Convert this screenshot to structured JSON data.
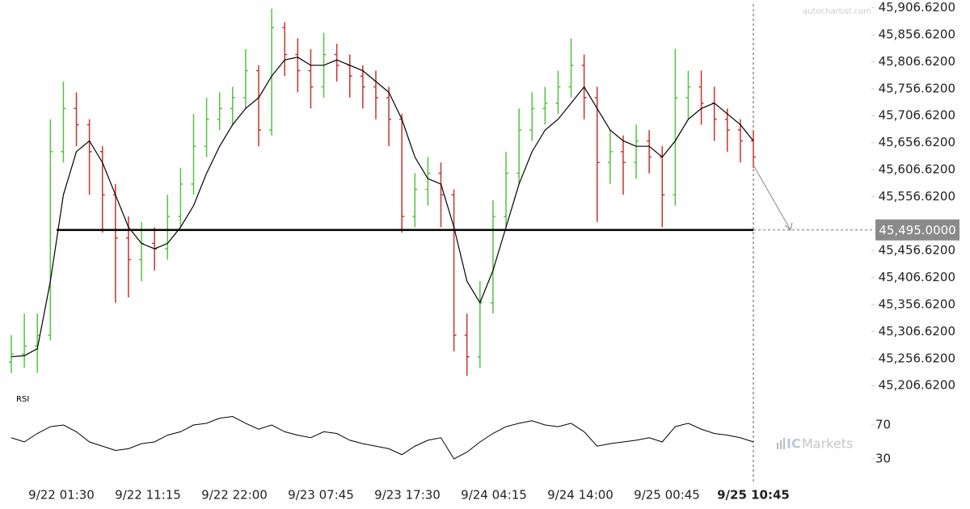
{
  "chart_data": [
    {
      "type": "ohlc",
      "up_color": "#55c243",
      "down_color": "#c8342c",
      "ma_color": "#000000",
      "open": [
        45250,
        45265,
        45280,
        45300,
        45640,
        45720,
        45690,
        45640,
        45560,
        45480,
        45440,
        45470,
        45460,
        45520,
        45580,
        45650,
        45700,
        45720,
        45740,
        45790,
        45680,
        45870,
        45820,
        45790,
        45760,
        45820,
        45800,
        45780,
        45760,
        45740,
        45700,
        45520,
        45570,
        45600,
        45560,
        45300,
        45260,
        45360,
        45520,
        45600,
        45680,
        45720,
        45730,
        45760,
        45800,
        45740,
        45620,
        45640,
        45620,
        45660,
        45630,
        45560,
        45740,
        45760,
        45730,
        45700,
        45680,
        45660
      ],
      "high": [
        45300,
        45340,
        45340,
        45700,
        45770,
        45750,
        45700,
        45650,
        45580,
        45520,
        45510,
        45500,
        45560,
        45610,
        45710,
        45740,
        45750,
        45760,
        45830,
        45800,
        45905,
        45880,
        45850,
        45830,
        45860,
        45840,
        45820,
        45800,
        45790,
        45760,
        45710,
        45600,
        45630,
        45620,
        45570,
        45340,
        45400,
        45550,
        45640,
        45720,
        45750,
        45760,
        45790,
        45850,
        45820,
        45760,
        45680,
        45670,
        45690,
        45680,
        45650,
        45830,
        45790,
        45790,
        45760,
        45720,
        45700,
        45680
      ],
      "low": [
        45230,
        45240,
        45230,
        45290,
        45620,
        45650,
        45560,
        45490,
        45360,
        45370,
        45400,
        45420,
        45440,
        45500,
        45560,
        45630,
        45680,
        45690,
        45720,
        45650,
        45670,
        45780,
        45750,
        45720,
        45740,
        45770,
        45740,
        45720,
        45700,
        45650,
        45490,
        45500,
        45540,
        45500,
        45270,
        45225,
        45240,
        45340,
        45500,
        45580,
        45660,
        45690,
        45710,
        45740,
        45700,
        45510,
        45580,
        45560,
        45590,
        45600,
        45500,
        45540,
        45700,
        45690,
        45660,
        45640,
        45620,
        45610
      ],
      "close": [
        45265,
        45280,
        45300,
        45640,
        45720,
        45690,
        45640,
        45560,
        45480,
        45440,
        45470,
        45460,
        45520,
        45580,
        45650,
        45700,
        45720,
        45740,
        45790,
        45680,
        45870,
        45820,
        45790,
        45760,
        45820,
        45800,
        45780,
        45760,
        45740,
        45700,
        45520,
        45570,
        45600,
        45560,
        45300,
        45260,
        45360,
        45520,
        45600,
        45680,
        45720,
        45730,
        45760,
        45800,
        45740,
        45620,
        45640,
        45620,
        45660,
        45630,
        45560,
        45740,
        45760,
        45730,
        45700,
        45680,
        45660,
        45630
      ],
      "ma": [
        45260,
        45262,
        45275,
        45400,
        45560,
        45640,
        45660,
        45620,
        45560,
        45500,
        45470,
        45460,
        45470,
        45500,
        45540,
        45600,
        45650,
        45690,
        45720,
        45740,
        45780,
        45810,
        45815,
        45800,
        45800,
        45810,
        45800,
        45790,
        45770,
        45750,
        45700,
        45630,
        45590,
        45580,
        45500,
        45400,
        45360,
        45420,
        45500,
        45580,
        45640,
        45680,
        45700,
        45730,
        45760,
        45720,
        45680,
        45660,
        45650,
        45650,
        45630,
        45660,
        45700,
        45720,
        45730,
        45710,
        45690,
        45660
      ],
      "ylim": [
        45195,
        45921
      ],
      "yticks": [
        {
          "value": 45906.62,
          "label": "45,906.6200"
        },
        {
          "value": 45856.62,
          "label": "45,856.6200"
        },
        {
          "value": 45806.62,
          "label": "45,806.6200"
        },
        {
          "value": 45756.62,
          "label": "45,756.6200"
        },
        {
          "value": 45706.62,
          "label": "45,706.6200"
        },
        {
          "value": 45656.62,
          "label": "45,656.6200"
        },
        {
          "value": 45606.62,
          "label": "45,606.6200"
        },
        {
          "value": 45556.62,
          "label": "45,556.6200"
        },
        {
          "value": 45456.62,
          "label": "45,456.6200"
        },
        {
          "value": 45406.62,
          "label": "45,406.6200"
        },
        {
          "value": 45356.62,
          "label": "45,356.6200"
        },
        {
          "value": 45306.62,
          "label": "45,306.6200"
        },
        {
          "value": 45256.62,
          "label": "45,256.6200"
        },
        {
          "value": 45206.62,
          "label": "45,206.6200"
        }
      ],
      "support": {
        "value": 45495,
        "label": "45,495.0000"
      },
      "x_labels": [
        "9/22 01:30",
        "9/22 11:15",
        "9/22 22:00",
        "9/23 07:45",
        "9/23 17:30",
        "9/24 04:15",
        "9/24 14:00",
        "9/25 00:45",
        "9/25 10:45"
      ],
      "watermark": "autochartist.com"
    },
    {
      "type": "line",
      "title": "RSI",
      "color": "#000000",
      "values": [
        55,
        50,
        60,
        68,
        70,
        62,
        50,
        45,
        40,
        42,
        48,
        50,
        58,
        62,
        70,
        72,
        78,
        80,
        72,
        65,
        70,
        62,
        58,
        55,
        62,
        60,
        52,
        48,
        45,
        42,
        35,
        45,
        52,
        55,
        30,
        38,
        50,
        60,
        68,
        72,
        75,
        70,
        68,
        72,
        62,
        45,
        48,
        50,
        52,
        55,
        50,
        68,
        72,
        65,
        60,
        58,
        55,
        50
      ],
      "ylim": [
        10,
        90
      ],
      "yticks": [
        70,
        30
      ],
      "brand": [
        "IC",
        "Markets"
      ]
    }
  ]
}
